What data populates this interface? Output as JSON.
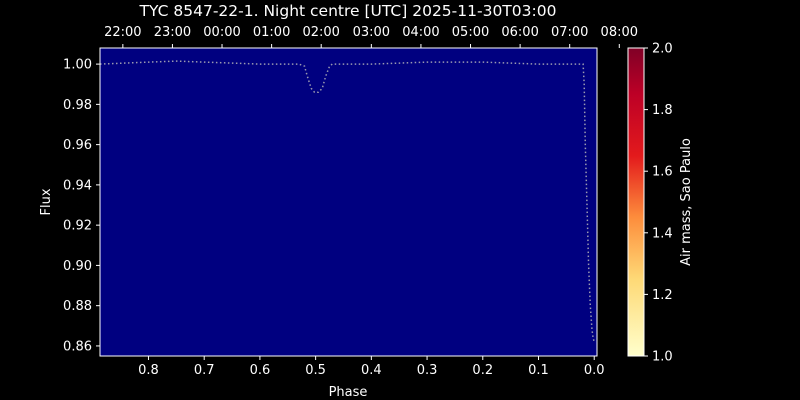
{
  "chart_data": {
    "type": "line",
    "title": "TYC 8547-22-1. Night centre [UTC] 2025-11-30T03:00",
    "xlabel": "Phase",
    "ylabel": "Flux",
    "xlim": [
      0.887,
      -0.005
    ],
    "ylim": [
      0.855,
      1.008
    ],
    "x_ticks": [
      0.8,
      0.7,
      0.6,
      0.5,
      0.4,
      0.3,
      0.2,
      0.1,
      0.0
    ],
    "x_tick_labels": [
      "0.8",
      "0.7",
      "0.6",
      "0.5",
      "0.4",
      "0.3",
      "0.2",
      "0.1",
      "0.0"
    ],
    "y_ticks": [
      1.0,
      0.98,
      0.96,
      0.94,
      0.92,
      0.9,
      0.88,
      0.86
    ],
    "y_tick_labels": [
      "1.00",
      "0.98",
      "0.96",
      "0.94",
      "0.92",
      "0.90",
      "0.88",
      "0.86"
    ],
    "top_axis_labels": [
      "22:00",
      "23:00",
      "00:00",
      "01:00",
      "02:00",
      "03:00",
      "04:00",
      "05:00",
      "06:00",
      "07:00",
      "08:00"
    ],
    "top_axis_phase": [
      0.846,
      0.757,
      0.668,
      0.579,
      0.49,
      0.4,
      0.311,
      0.222,
      0.133,
      0.044,
      -0.045
    ],
    "colorbar": {
      "label": "Air mass, Sao Paulo",
      "range": [
        1.0,
        2.0
      ],
      "ticks": [
        "1.0",
        "1.2",
        "1.4",
        "1.6",
        "1.8",
        "2.0"
      ],
      "colormap": "YlOrRd"
    },
    "background_color": "#000080",
    "line_color": "#9a9ab0",
    "series": [
      {
        "x": [
          0.887,
          0.8,
          0.75,
          0.7,
          0.65,
          0.6,
          0.55,
          0.53,
          0.52,
          0.515,
          0.508,
          0.502,
          0.495,
          0.488,
          0.482,
          0.475,
          0.47,
          0.45,
          0.4,
          0.35,
          0.3,
          0.25,
          0.2,
          0.15,
          0.1,
          0.05,
          0.03,
          0.02,
          0.018,
          0.016,
          0.013,
          0.01,
          0.007,
          0.004,
          0.002,
          0.0
        ],
        "y": [
          1.0,
          1.001,
          1.0015,
          1.001,
          1.0005,
          1.0,
          1.0,
          1.0,
          0.999,
          0.994,
          0.988,
          0.986,
          0.986,
          0.988,
          0.994,
          0.999,
          1.0,
          1.0,
          1.0,
          1.0005,
          1.001,
          1.001,
          1.001,
          1.0005,
          1.0,
          1.0,
          1.0,
          1.0,
          0.99,
          0.96,
          0.93,
          0.9,
          0.88,
          0.868,
          0.864,
          0.862
        ]
      }
    ]
  }
}
